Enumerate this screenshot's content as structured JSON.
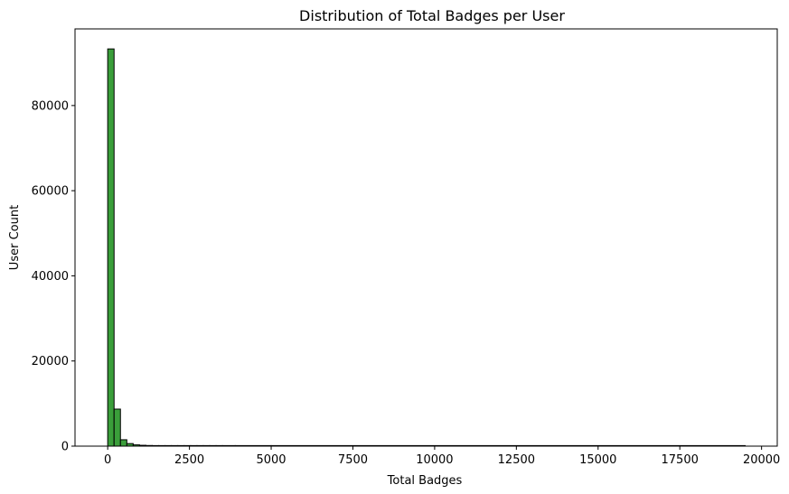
{
  "chart_data": {
    "type": "bar",
    "title": "Distribution of Total Badges per User",
    "xlabel": "Total Badges",
    "ylabel": "User Count",
    "xlim": [
      -1000,
      20480
    ],
    "ylim": [
      0,
      98000
    ],
    "x_ticks": [
      0,
      2500,
      5000,
      7500,
      10000,
      12500,
      15000,
      17500,
      20000
    ],
    "x_tick_labels": [
      "0",
      "2500",
      "5000",
      "7500",
      "10000",
      "12500",
      "15000",
      "17500",
      "20000"
    ],
    "y_ticks": [
      0,
      20000,
      40000,
      60000,
      80000
    ],
    "y_tick_labels": [
      "0",
      "20000",
      "40000",
      "60000",
      "80000"
    ],
    "bin_width": 195,
    "bins": [
      {
        "x0": 0,
        "x1": 195,
        "count": 93300
      },
      {
        "x0": 195,
        "x1": 390,
        "count": 8700
      },
      {
        "x0": 390,
        "x1": 585,
        "count": 1500
      },
      {
        "x0": 585,
        "x1": 780,
        "count": 600
      },
      {
        "x0": 780,
        "x1": 975,
        "count": 300
      },
      {
        "x0": 975,
        "x1": 1170,
        "count": 200
      },
      {
        "x0": 1170,
        "x1": 1365,
        "count": 150
      },
      {
        "x0": 1365,
        "x1": 1560,
        "count": 60
      },
      {
        "x0": 1560,
        "x1": 1755,
        "count": 40
      },
      {
        "x0": 1755,
        "x1": 1950,
        "count": 30
      },
      {
        "x0": 1950,
        "x1": 2145,
        "count": 20
      },
      {
        "x0": 2145,
        "x1": 2340,
        "count": 15
      },
      {
        "x0": 2340,
        "x1": 2535,
        "count": 10
      },
      {
        "x0": 2535,
        "x1": 2730,
        "count": 8
      },
      {
        "x0": 2730,
        "x1": 2925,
        "count": 6
      },
      {
        "x0": 2925,
        "x1": 3120,
        "count": 5
      },
      {
        "x0": 3120,
        "x1": 3315,
        "count": 4
      },
      {
        "x0": 3315,
        "x1": 3510,
        "count": 3
      },
      {
        "x0": 3510,
        "x1": 3900,
        "count": 3
      },
      {
        "x0": 3900,
        "x1": 5000,
        "count": 2
      },
      {
        "x0": 5000,
        "x1": 19500,
        "count": 1
      }
    ],
    "bar_color": "#3a9e3a",
    "edge_color": "#000000",
    "grid": false,
    "legend": "none"
  }
}
